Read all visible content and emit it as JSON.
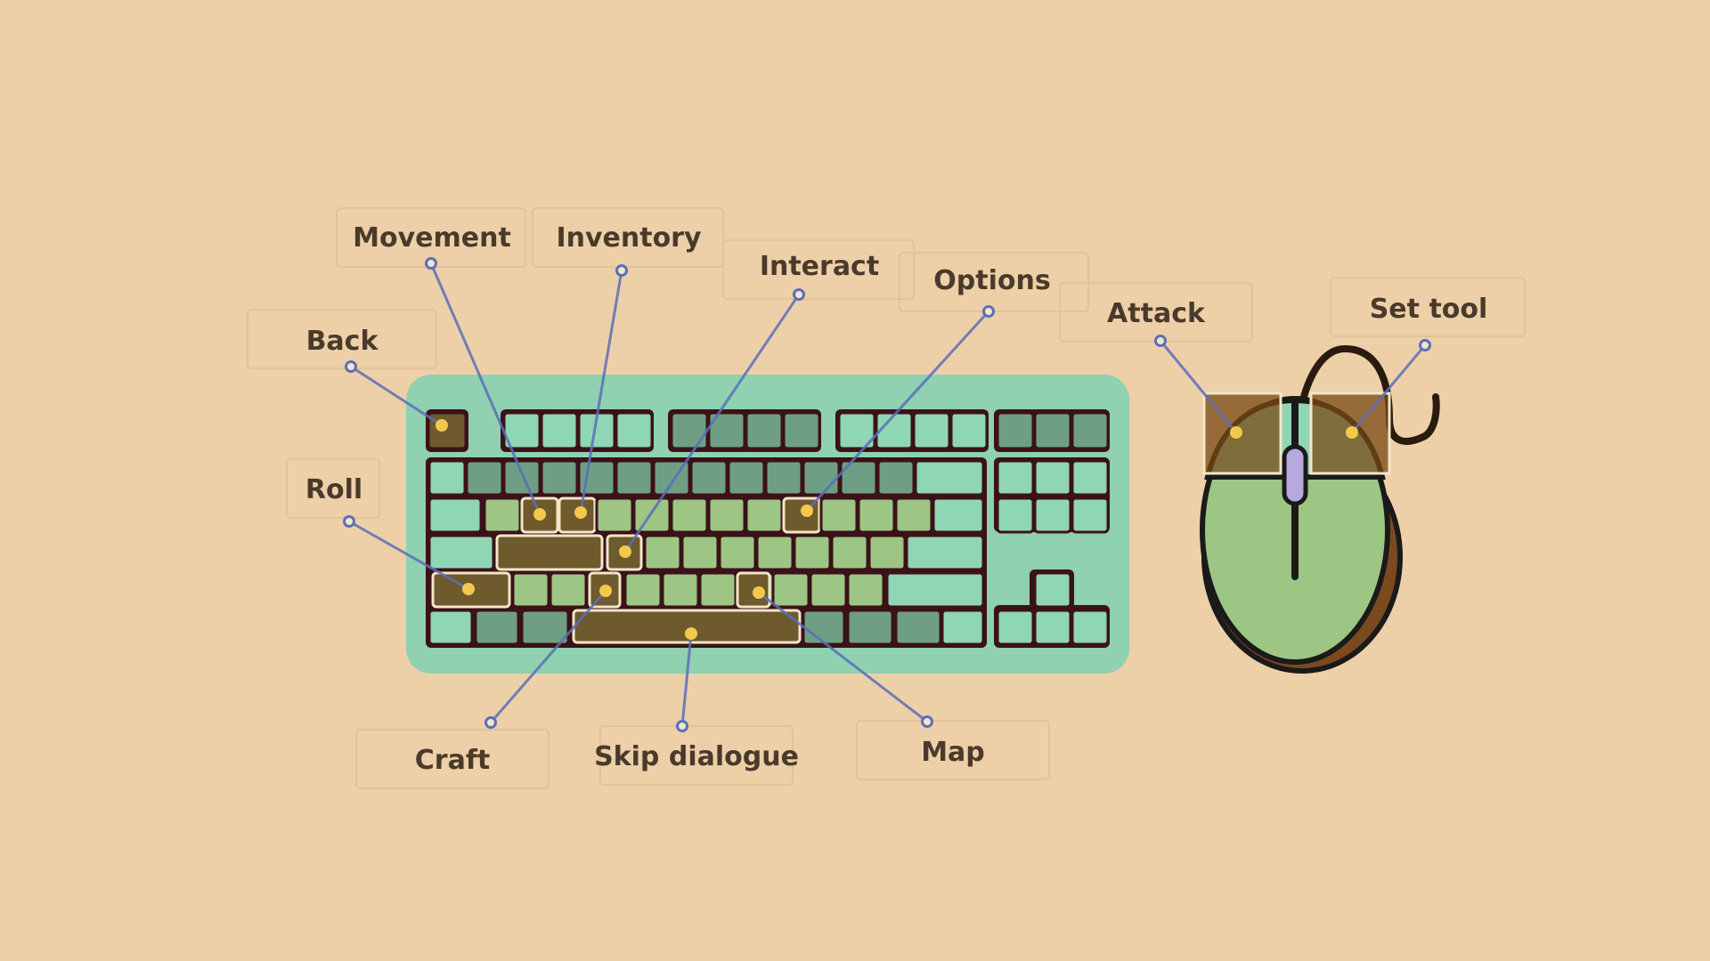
{
  "colors": {
    "background": "#EDD0A8",
    "keyboard_case": "#8FD1B0",
    "key_light": "#8FD6B4",
    "key_dark": "#6E9F84",
    "key_green": "#9DC584",
    "key_highlight": "#6E5A2C",
    "key_border": "#3A1218",
    "connector_line": "#5A6FB8",
    "anchor_dot": "#F2C94C",
    "label_text": "#4A3A2C",
    "mouse_body": "#9DC584",
    "mouse_shadow": "#7A4A1E",
    "mouse_wheel": "#B8A8E0",
    "mouse_button_highlight": "#8A5A26"
  },
  "controls": [
    {
      "id": "back",
      "label": "Back",
      "target": "Esc key"
    },
    {
      "id": "movement",
      "label": "Movement",
      "target": "W A S D keys"
    },
    {
      "id": "inventory",
      "label": "Inventory",
      "target": "E key"
    },
    {
      "id": "interact",
      "label": "Interact",
      "target": "F key"
    },
    {
      "id": "options",
      "label": "Options",
      "target": "O key"
    },
    {
      "id": "roll",
      "label": "Roll",
      "target": "Shift key"
    },
    {
      "id": "craft",
      "label": "Craft",
      "target": "C key"
    },
    {
      "id": "skip",
      "label": "Skip dialogue",
      "target": "Space bar"
    },
    {
      "id": "map",
      "label": "Map",
      "target": "M key"
    },
    {
      "id": "attack",
      "label": "Attack",
      "target": "Left mouse button"
    },
    {
      "id": "settool",
      "label": "Set tool",
      "target": "Right mouse button"
    }
  ],
  "icons": {
    "keyboard": "keyboard-icon",
    "mouse": "mouse-icon"
  }
}
